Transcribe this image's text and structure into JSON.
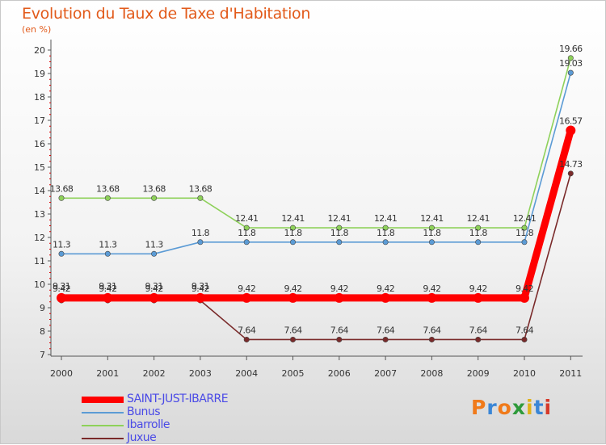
{
  "header": {
    "title": "Evolution du Taux de Taxe d'Habitation",
    "unit": "(en %)"
  },
  "brand": {
    "letters": [
      "P",
      "r",
      "o",
      "x",
      "i",
      "t",
      "i"
    ],
    "colors": [
      "#f07a1a",
      "#3a86d6",
      "#f07a1a",
      "#2e9a3a",
      "#e0b21a",
      "#3a86d6",
      "#d63a2a"
    ]
  },
  "chart_data": {
    "type": "line",
    "x": [
      "2000",
      "2001",
      "2002",
      "2003",
      "2004",
      "2005",
      "2006",
      "2007",
      "2008",
      "2009",
      "2010",
      "2011"
    ],
    "ylim": [
      7,
      20
    ],
    "yticks": [
      "7",
      "8",
      "9",
      "10",
      "11",
      "12",
      "13",
      "14",
      "15",
      "16",
      "17",
      "18",
      "19",
      "20"
    ],
    "grid": false,
    "legend_position": "bottom-left",
    "series": [
      {
        "name": "SAINT-JUST-IBARRE",
        "color": "#ff0000",
        "values": [
          9.42,
          9.42,
          9.42,
          9.42,
          9.42,
          9.42,
          9.42,
          9.42,
          9.42,
          9.42,
          9.42,
          16.57
        ],
        "labels": [
          "9.42",
          "9.42",
          "9.42",
          "9.42",
          "9.42",
          "9.42",
          "9.42",
          "9.42",
          "9.42",
          "9.42",
          "9.42",
          "16.57"
        ]
      },
      {
        "name": "Bunus",
        "color": "#5b9bd5",
        "values": [
          11.3,
          11.3,
          11.3,
          11.8,
          11.8,
          11.8,
          11.8,
          11.8,
          11.8,
          11.8,
          11.8,
          19.03
        ],
        "labels": [
          "11.3",
          "11.3",
          "11.3",
          "11.8",
          "11.8",
          "11.8",
          "11.8",
          "11.8",
          "11.8",
          "11.8",
          "11.8",
          "19.03"
        ]
      },
      {
        "name": "Ibarrolle",
        "color": "#8ed15a",
        "values": [
          13.68,
          13.68,
          13.68,
          13.68,
          12.41,
          12.41,
          12.41,
          12.41,
          12.41,
          12.41,
          12.41,
          19.66
        ],
        "labels": [
          "13.68",
          "13.68",
          "13.68",
          "13.68",
          "12.41",
          "12.41",
          "12.41",
          "12.41",
          "12.41",
          "12.41",
          "12.41",
          "19.66"
        ]
      },
      {
        "name": "Juxue",
        "color": "#7a2a2a",
        "values": [
          9.31,
          9.31,
          9.31,
          9.31,
          7.64,
          7.64,
          7.64,
          7.64,
          7.64,
          7.64,
          7.64,
          14.73
        ],
        "labels": [
          "9.31",
          "9.31",
          "9.31",
          "9.31",
          "7.64",
          "7.64",
          "7.64",
          "7.64",
          "7.64",
          "7.64",
          "7.64",
          "14.73"
        ]
      }
    ]
  }
}
